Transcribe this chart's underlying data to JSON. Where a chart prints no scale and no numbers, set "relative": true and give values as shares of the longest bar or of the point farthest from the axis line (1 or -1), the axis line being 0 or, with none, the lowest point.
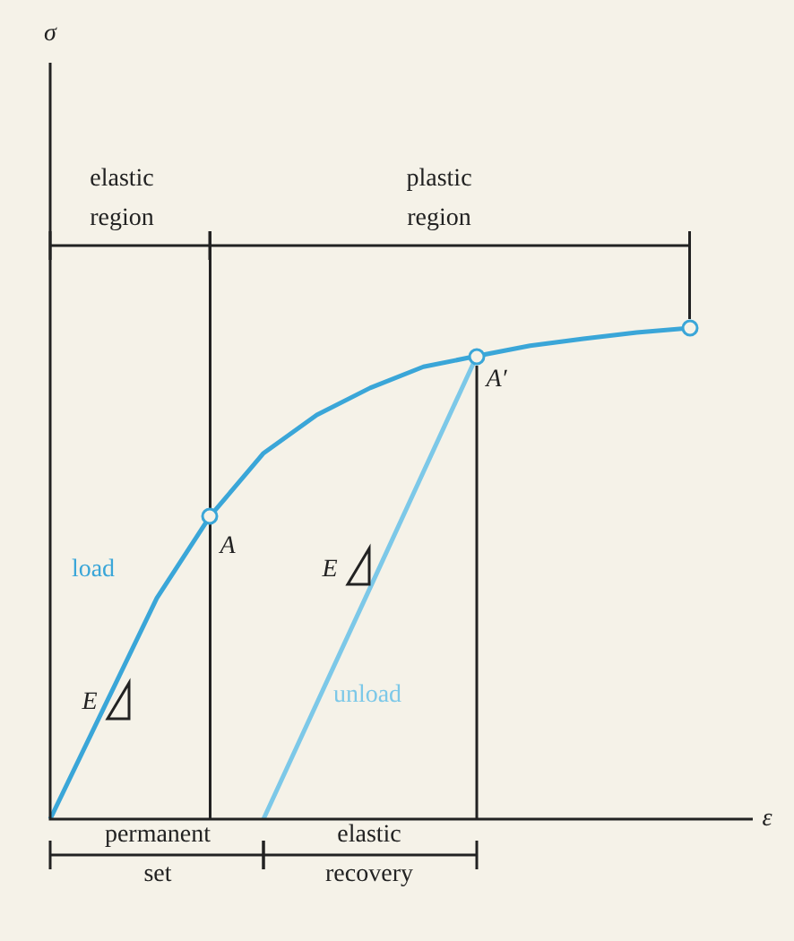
{
  "chart_data": {
    "type": "line",
    "relative": true,
    "xlabel": "ε",
    "marker": "none",
    "categories": [
      null,
      null,
      null,
      null,
      null,
      null,
      null,
      null,
      null,
      null,
      null,
      null,
      null
    ],
    "series": [
      {
        "type": "line",
        "color": "#3aa6d8",
        "values": [
          0,
          0.225,
          0.45,
          0.617,
          0.745,
          0.823,
          0.878,
          0.921,
          0.943,
          0.964,
          0.978,
          0.991,
          1
        ]
      },
      {
        "type": "line",
        "color": "#7cc8e8",
        "values": [
          null,
          null,
          null,
          null,
          0,
          0.236,
          0.471,
          0.707,
          0.943,
          null,
          null,
          null,
          null
        ]
      }
    ],
    "annotations": [
      "A",
      "A′",
      "load",
      "unload",
      "E",
      "E",
      "elastic region",
      "plastic region",
      "permanent set",
      "elastic recovery",
      "σ"
    ]
  }
}
